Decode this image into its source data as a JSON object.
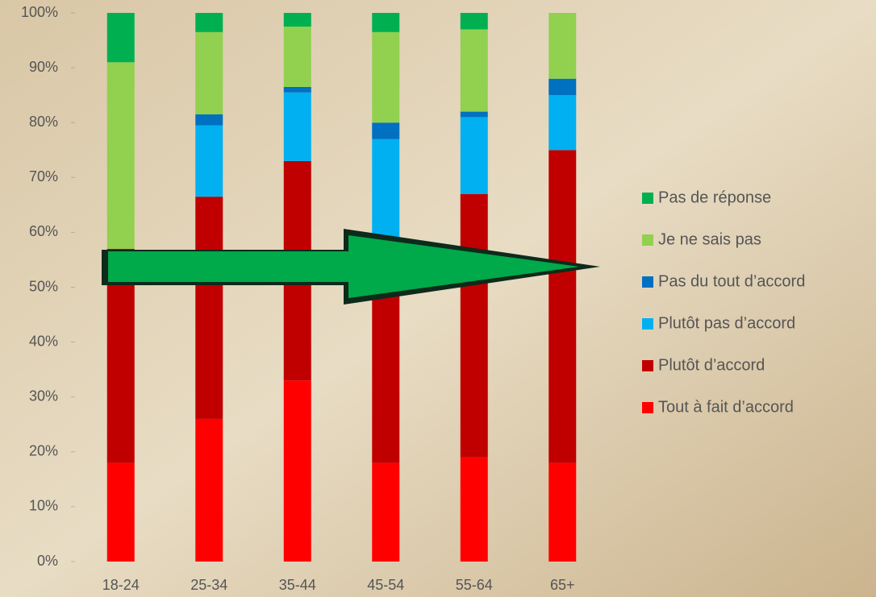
{
  "chart_data": {
    "type": "stacked_bar",
    "categories": [
      "18-24",
      "25-34",
      "35-44",
      "45-54",
      "55-64",
      "65+"
    ],
    "series": [
      {
        "name": "Tout à fait d’accord",
        "color": "#ff0000",
        "values": [
          18,
          26,
          33,
          18,
          19,
          18
        ]
      },
      {
        "name": "Plutôt d’accord",
        "color": "#c00000",
        "values": [
          39,
          40.5,
          40,
          41,
          48,
          57
        ]
      },
      {
        "name": "Plutôt pas d’accord",
        "color": "#00b0f0",
        "values": [
          0,
          13,
          12.5,
          18,
          14,
          10
        ]
      },
      {
        "name": "Pas du tout d’accord",
        "color": "#0070c0",
        "values": [
          0,
          2,
          1,
          3,
          1,
          3
        ]
      },
      {
        "name": "Je ne sais pas",
        "color": "#92d050",
        "values": [
          34,
          15,
          11,
          16.5,
          15,
          12
        ]
      },
      {
        "name": "Pas de réponse",
        "color": "#00b050",
        "values": [
          9,
          3.5,
          2.5,
          3.5,
          3,
          0
        ]
      }
    ],
    "ylim": [
      0,
      100
    ],
    "yticks": [
      {
        "value": 0,
        "label": "0%"
      },
      {
        "value": 10,
        "label": "10%"
      },
      {
        "value": 20,
        "label": "20%"
      },
      {
        "value": 30,
        "label": "30%"
      },
      {
        "value": 40,
        "label": "40%"
      },
      {
        "value": 50,
        "label": "50%"
      },
      {
        "value": 60,
        "label": "60%"
      },
      {
        "value": 70,
        "label": "70%"
      },
      {
        "value": 80,
        "label": "80%"
      },
      {
        "value": 90,
        "label": "90%"
      },
      {
        "value": 100,
        "label": "100%"
      }
    ],
    "grid": false,
    "legend": "right"
  }
}
